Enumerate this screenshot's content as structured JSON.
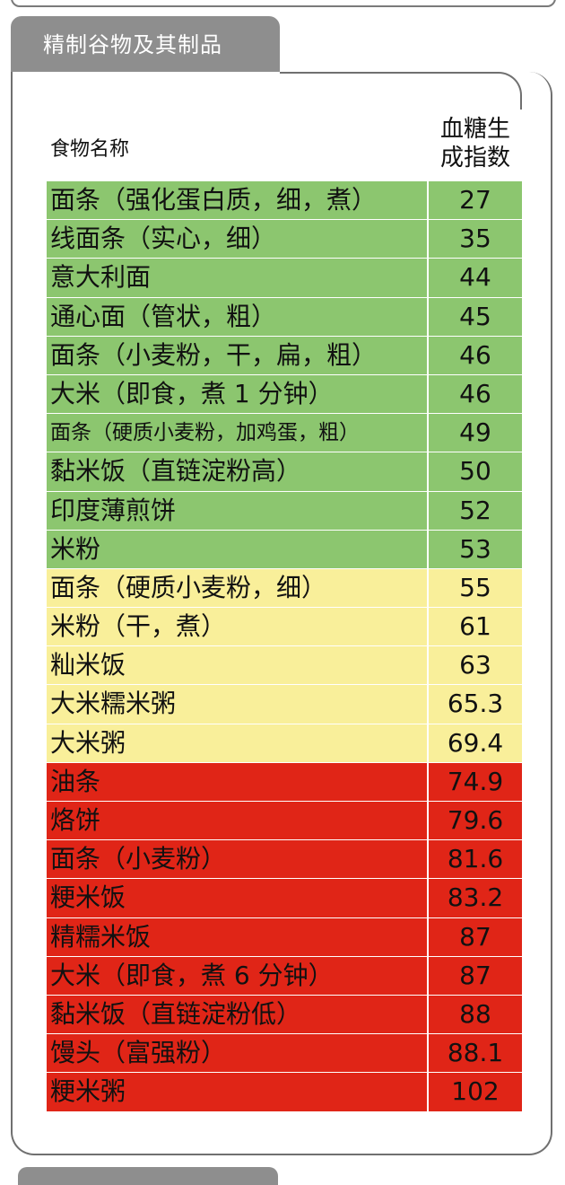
{
  "section_title": "精制谷物及其制品",
  "header": {
    "name_col": "食物名称",
    "gi_col_line1": "血糖生",
    "gi_col_line2": "成指数"
  },
  "level_colors": {
    "low": "#8cc66f",
    "medium": "#f9ef9a",
    "high": "#e02517"
  },
  "rows": [
    {
      "name": "面条（强化蛋白质，细，煮）",
      "gi": "27",
      "level": "low"
    },
    {
      "name": "线面条（实心，细）",
      "gi": "35",
      "level": "low"
    },
    {
      "name": "意大利面",
      "gi": "44",
      "level": "low"
    },
    {
      "name": "通心面（管状，粗）",
      "gi": "45",
      "level": "low"
    },
    {
      "name": "面条（小麦粉，干，扁，粗）",
      "gi": "46",
      "level": "low"
    },
    {
      "name": "大米（即食，煮 1 分钟）",
      "gi": "46",
      "level": "low"
    },
    {
      "name": "面条（硬质小麦粉，加鸡蛋，粗）",
      "gi": "49",
      "level": "low"
    },
    {
      "name": "黏米饭（直链淀粉高）",
      "gi": "50",
      "level": "low"
    },
    {
      "name": "印度薄煎饼",
      "gi": "52",
      "level": "low"
    },
    {
      "name": "米粉",
      "gi": "53",
      "level": "low"
    },
    {
      "name": "面条（硬质小麦粉，细）",
      "gi": "55",
      "level": "medium"
    },
    {
      "name": "米粉（干，煮）",
      "gi": "61",
      "level": "medium"
    },
    {
      "name": "籼米饭",
      "gi": "63",
      "level": "medium"
    },
    {
      "name": "大米糯米粥",
      "gi": "65.3",
      "level": "medium"
    },
    {
      "name": "大米粥",
      "gi": "69.4",
      "level": "medium"
    },
    {
      "name": "油条",
      "gi": "74.9",
      "level": "high"
    },
    {
      "name": "烙饼",
      "gi": "79.6",
      "level": "high"
    },
    {
      "name": "面条（小麦粉）",
      "gi": "81.6",
      "level": "high"
    },
    {
      "name": "粳米饭",
      "gi": "83.2",
      "level": "high"
    },
    {
      "name": "精糯米饭",
      "gi": "87",
      "level": "high"
    },
    {
      "name": "大米（即食，煮 6 分钟）",
      "gi": "87",
      "level": "high"
    },
    {
      "name": "黏米饭（直链淀粉低）",
      "gi": "88",
      "level": "high"
    },
    {
      "name": "馒头（富强粉）",
      "gi": "88.1",
      "level": "high"
    },
    {
      "name": "粳米粥",
      "gi": "102",
      "level": "high"
    }
  ]
}
